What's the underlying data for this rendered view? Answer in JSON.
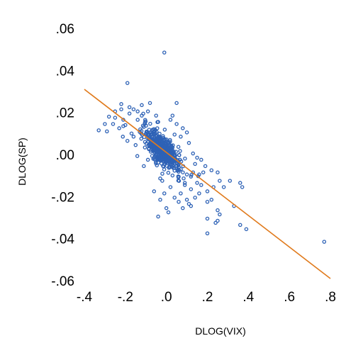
{
  "chart_data": {
    "type": "scatter",
    "title": "",
    "xlabel": "DLOG(VIX)",
    "ylabel": "DLOG(SP)",
    "xlim": [
      -0.4,
      0.8
    ],
    "ylim": [
      -0.06,
      0.06
    ],
    "xticks": [
      -0.4,
      -0.2,
      0.0,
      0.2,
      0.4,
      0.6,
      0.8
    ],
    "xtick_labels": [
      "-.4",
      "-.2",
      ".0",
      ".2",
      ".4",
      ".6",
      ".8"
    ],
    "yticks": [
      0.06,
      0.04,
      0.02,
      0.0,
      -0.02,
      -0.04,
      -0.06
    ],
    "ytick_labels": [
      ".06",
      ".04",
      ".02",
      ".00",
      "-.02",
      "-.04",
      "-.06"
    ],
    "grid": false,
    "legend": "none",
    "marker_color": "#2e62b6",
    "fit_color": "#e07a1c",
    "fit_line": {
      "x": [
        -0.4,
        0.8
      ],
      "y": [
        0.031,
        -0.059
      ]
    },
    "series": [
      {
        "points": [
          [
            -0.01,
            0.0485
          ],
          [
            -0.19,
            0.034
          ],
          [
            -0.22,
            0.024
          ],
          [
            -0.25,
            0.0205
          ],
          [
            -0.22,
            0.0215
          ],
          [
            -0.28,
            0.018
          ],
          [
            -0.33,
            0.0115
          ],
          [
            -0.3,
            0.0145
          ],
          [
            -0.29,
            0.011
          ],
          [
            -0.25,
            0.0175
          ],
          [
            -0.21,
            0.0135
          ],
          [
            0.05,
            0.0245
          ],
          [
            -0.08,
            0.0245
          ],
          [
            -0.12,
            0.0235
          ],
          [
            -0.14,
            0.0205
          ],
          [
            -0.18,
            0.0195
          ],
          [
            -0.2,
            0.014
          ],
          [
            -0.17,
            0.01
          ],
          [
            0.05,
            0.0145
          ],
          [
            0.03,
            0.0185
          ],
          [
            -0.05,
            0.0185
          ],
          [
            -0.04,
            0.0155
          ],
          [
            -0.06,
            -0.0175
          ],
          [
            -0.04,
            -0.0295
          ],
          [
            0.0,
            -0.0255
          ],
          [
            0.01,
            -0.0275
          ],
          [
            0.06,
            -0.0225
          ],
          [
            0.08,
            -0.0255
          ],
          [
            0.1,
            -0.0215
          ],
          [
            0.11,
            -0.0235
          ],
          [
            0.09,
            -0.0145
          ],
          [
            0.12,
            -0.0165
          ],
          [
            0.15,
            -0.0135
          ],
          [
            0.17,
            -0.0145
          ],
          [
            0.16,
            -0.0185
          ],
          [
            0.2,
            -0.0175
          ],
          [
            0.2,
            -0.0225
          ],
          [
            0.22,
            -0.0215
          ],
          [
            0.23,
            -0.0155
          ],
          [
            0.26,
            -0.0125
          ],
          [
            0.25,
            -0.0085
          ],
          [
            0.22,
            -0.0075
          ],
          [
            0.19,
            -0.0055
          ],
          [
            0.28,
            -0.0155
          ],
          [
            0.31,
            -0.0125
          ],
          [
            0.36,
            -0.0135
          ],
          [
            0.37,
            -0.0155
          ],
          [
            0.33,
            -0.0245
          ],
          [
            0.25,
            -0.0265
          ],
          [
            0.25,
            -0.0315
          ],
          [
            0.2,
            -0.0305
          ],
          [
            0.2,
            -0.0375
          ],
          [
            0.24,
            -0.0325
          ],
          [
            0.26,
            -0.0285
          ],
          [
            0.36,
            -0.0335
          ],
          [
            0.39,
            -0.0355
          ],
          [
            0.77,
            -0.0415
          ],
          [
            0.12,
            -0.0245
          ],
          [
            0.07,
            -0.0185
          ],
          [
            0.02,
            -0.0155
          ],
          [
            -0.02,
            -0.0125
          ],
          [
            0.06,
            -0.0105
          ],
          [
            0.1,
            -0.0095
          ],
          [
            0.13,
            -0.0085
          ],
          [
            0.14,
            -0.0045
          ],
          [
            0.18,
            -0.0085
          ],
          [
            0.16,
            -0.0095
          ],
          [
            -0.11,
            -0.0055
          ],
          [
            -0.09,
            -0.0025
          ],
          [
            -0.15,
            0.0045
          ],
          [
            -0.16,
            0.0085
          ],
          [
            -0.19,
            0.0065
          ],
          [
            -0.21,
            0.0165
          ],
          [
            -0.23,
            0.0125
          ],
          [
            -0.26,
            0.0145
          ],
          [
            -0.14,
            0.0165
          ],
          [
            -0.12,
            0.0185
          ],
          [
            -0.16,
            0.0215
          ],
          [
            -0.18,
            0.0225
          ],
          [
            -0.09,
            0.0205
          ],
          [
            0.02,
            0.0165
          ],
          [
            0.08,
            0.0125
          ],
          [
            0.1,
            0.0105
          ],
          [
            0.07,
            0.0085
          ],
          [
            0.11,
            0.0055
          ],
          [
            0.04,
            0.0095
          ],
          [
            0.13,
            0.0005
          ],
          [
            0.15,
            -0.0015
          ],
          [
            0.17,
            -0.0025
          ],
          [
            0.12,
            -0.0105
          ],
          [
            0.09,
            -0.0135
          ],
          [
            0.04,
            -0.0205
          ],
          [
            -0.01,
            -0.0185
          ],
          [
            -0.03,
            -0.0215
          ],
          [
            0.14,
            -0.0205
          ]
        ]
      }
    ],
    "cluster": {
      "count": 520,
      "seed": 7,
      "center": [
        -0.02,
        0.002
      ],
      "spread_along": 0.045,
      "spread_across": 0.0035,
      "slope": -0.078
    }
  }
}
